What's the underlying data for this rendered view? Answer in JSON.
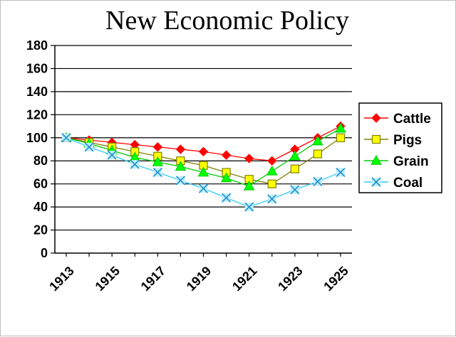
{
  "chart_data": {
    "type": "line",
    "title": "New Economic Policy",
    "xlabel": "",
    "ylabel": "",
    "x": [
      1913,
      1914,
      1915,
      1916,
      1917,
      1918,
      1919,
      1920,
      1921,
      1922,
      1923,
      1924,
      1925
    ],
    "x_tick_labels": [
      "1913",
      "1915",
      "1917",
      "1919",
      "1921",
      "1923",
      "1925"
    ],
    "x_tick_years": [
      1913,
      1915,
      1917,
      1919,
      1921,
      1923,
      1925
    ],
    "ylim": [
      0,
      180
    ],
    "y_ticks": [
      0,
      20,
      40,
      60,
      80,
      100,
      120,
      140,
      160,
      180
    ],
    "grid": true,
    "legend_position": "right",
    "series": [
      {
        "name": "Cattle",
        "color": "#ff0000",
        "marker_fill": "#ff0000",
        "marker": "diamond",
        "values": [
          100,
          98,
          96,
          94,
          92,
          90,
          88,
          85,
          82,
          80,
          90,
          100,
          110
        ]
      },
      {
        "name": "Pigs",
        "color": "#808000",
        "marker_fill": "#ffff00",
        "marker": "square",
        "values": [
          100,
          96,
          92,
          88,
          84,
          80,
          76,
          70,
          64,
          60,
          73,
          86,
          100
        ]
      },
      {
        "name": "Grain",
        "color": "#00cc00",
        "marker_fill": "#00ff00",
        "marker": "triangle",
        "values": [
          100,
          95,
          89,
          83,
          79,
          75,
          70,
          65,
          58,
          71,
          84,
          97,
          108
        ]
      },
      {
        "name": "Coal",
        "color": "#33ccff",
        "marker_fill": "#33ccff",
        "marker": "x",
        "values": [
          100,
          92,
          85,
          77,
          70,
          63,
          56,
          48,
          40,
          47,
          55,
          62,
          70
        ]
      }
    ]
  }
}
